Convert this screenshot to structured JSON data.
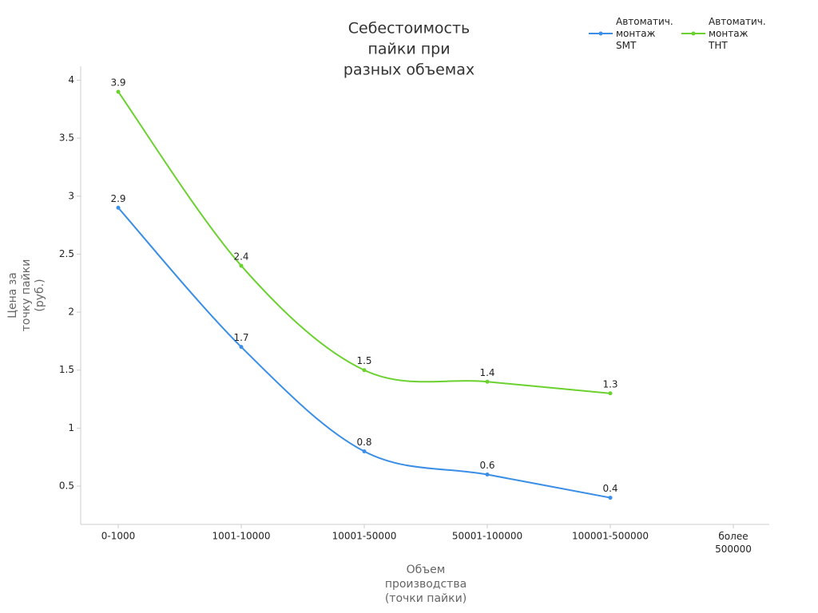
{
  "chart_data": {
    "type": "line",
    "title": [
      "Себестоимость",
      "пайки при",
      "разных объемах"
    ],
    "x_label": [
      "Объем",
      "производства",
      "(точки пайки)"
    ],
    "y_label": [
      "Цена за",
      "точку пайки",
      "(руб.)"
    ],
    "categories": [
      "0-1000",
      "1001-10000",
      "10001-50000",
      "50001-100000",
      "100001-500000",
      "более 500000"
    ],
    "series": [
      {
        "name": "Автоматич. монтаж SMT",
        "color": "#3a8ee6",
        "values": [
          2.9,
          1.7,
          0.8,
          0.6,
          0.4,
          null
        ]
      },
      {
        "name": "Автоматич. монтаж THT",
        "color": "#6ad12e",
        "values": [
          3.9,
          2.4,
          1.5,
          1.4,
          1.3,
          null
        ]
      }
    ],
    "ylim": [
      0.17,
      4.12
    ],
    "yticks": [
      0.5,
      1,
      1.5,
      2,
      2.5,
      3,
      3.5,
      4
    ],
    "grid": false,
    "legend": "top-right",
    "smooth": true
  }
}
